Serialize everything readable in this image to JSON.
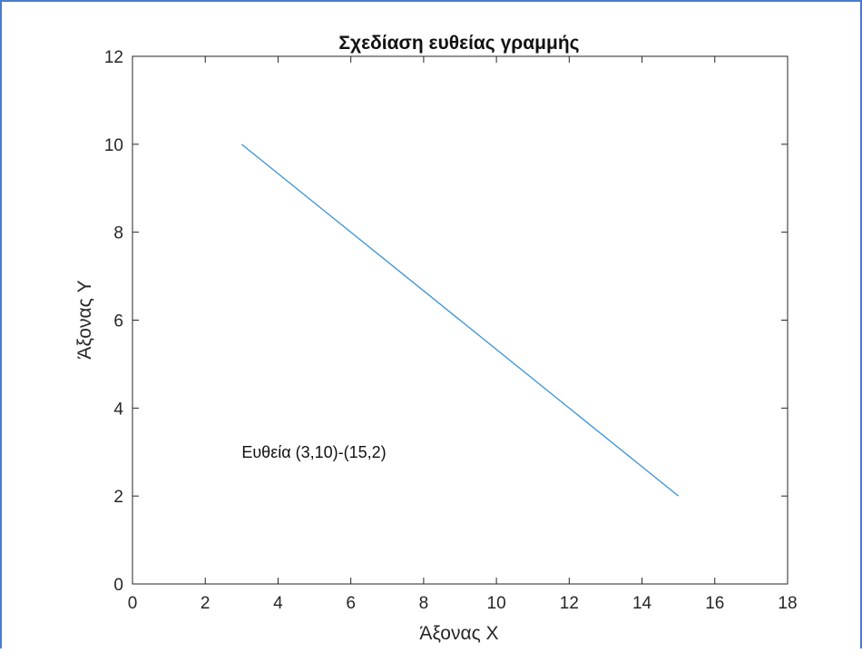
{
  "chart_data": {
    "type": "line",
    "title": "Σχεδίαση ευθείας γραμμής",
    "xlabel": "Άξονας X",
    "ylabel": "Άξονας Y",
    "xlim": [
      0,
      18
    ],
    "ylim": [
      0,
      12
    ],
    "x_ticks": [
      0,
      2,
      4,
      6,
      8,
      10,
      12,
      14,
      16,
      18
    ],
    "y_ticks": [
      0,
      2,
      4,
      6,
      8,
      10,
      12
    ],
    "grid": false,
    "series": [
      {
        "x": [
          3,
          15
        ],
        "y": [
          10,
          2
        ],
        "color": "#3a93d6"
      }
    ],
    "annotations": [
      {
        "text": "Ευθεία (3,10)-(15,2)",
        "x": 3,
        "y": 3
      }
    ]
  }
}
